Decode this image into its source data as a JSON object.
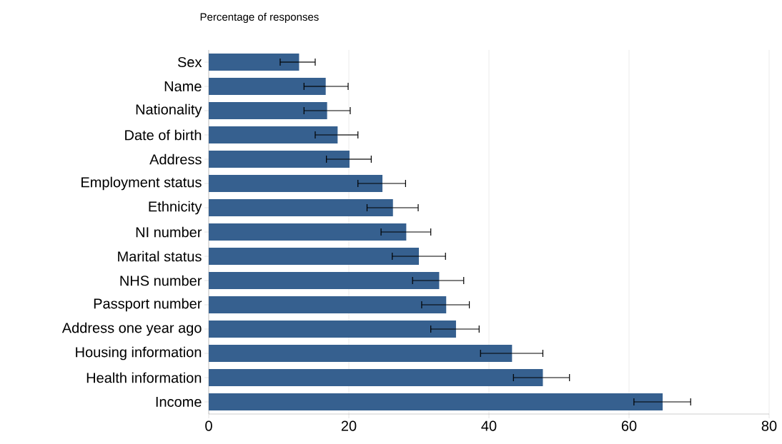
{
  "chart_data": {
    "type": "bar",
    "orientation": "horizontal",
    "title": "Percentage of responses",
    "categories": [
      "Sex",
      "Name",
      "Nationality",
      "Date of birth",
      "Address",
      "Employment status",
      "Ethnicity",
      "NI number",
      "Marital status",
      "NHS number",
      "Passport number",
      "Address one year ago",
      "Housing information",
      "Health information",
      "Income"
    ],
    "values": [
      12.9,
      16.7,
      16.9,
      18.4,
      20.1,
      24.8,
      26.3,
      28.2,
      30.0,
      32.9,
      33.9,
      35.3,
      43.3,
      47.7,
      64.8
    ],
    "errors": [
      [
        10.2,
        15.2
      ],
      [
        13.6,
        19.9
      ],
      [
        13.6,
        20.2
      ],
      [
        15.2,
        21.3
      ],
      [
        16.8,
        23.2
      ],
      [
        21.3,
        28.1
      ],
      [
        22.6,
        29.9
      ],
      [
        24.6,
        31.7
      ],
      [
        26.2,
        33.8
      ],
      [
        29.1,
        36.4
      ],
      [
        30.4,
        37.2
      ],
      [
        31.7,
        38.6
      ],
      [
        38.8,
        47.7
      ],
      [
        43.5,
        51.5
      ],
      [
        60.7,
        68.8
      ]
    ],
    "color": "#36608f",
    "xlim": [
      0,
      80
    ],
    "xticks": [
      0,
      20,
      40,
      60,
      80
    ],
    "grid": "x"
  }
}
